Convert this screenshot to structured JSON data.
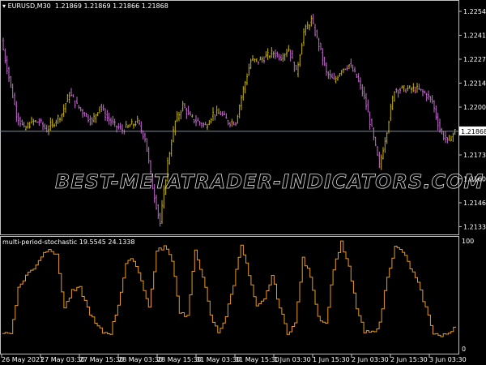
{
  "header": {
    "symbol": "EURUSD,M30",
    "ohlc": "1.21869 1.21869 1.21866 1.21868"
  },
  "indicator": {
    "name": "multi-period-stochastic",
    "values": "19.5545 24.1338"
  },
  "watermark": "BEST-METATRADER-INDICATORS.COM",
  "colors": {
    "background": "#000000",
    "up_bar": "#c8b400",
    "down_bar": "#c86ed2",
    "oscillator": "#e89a1c",
    "grid_axis": "#c0c0c0",
    "price_line": "#7a8ca0"
  },
  "chart_data": [
    {
      "type": "bar",
      "title": "EURUSD,M30",
      "ylim": [
        1.2126,
        1.2262
      ],
      "y_ticks": [
        "1.22545",
        "1.22410",
        "1.22275",
        "1.22140",
        "1.22005",
        "1.21735",
        "1.21600",
        "1.21465",
        "1.21330"
      ],
      "current_price": "1.21868",
      "x_ticks": [
        "26 May 2021",
        "27 May 03:30",
        "27 May 15:30",
        "28 May 03:30",
        "28 May 15:30",
        "31 May 03:30",
        "31 May 15:30",
        "1 Jun 03:30",
        "1 Jun 15:30",
        "2 Jun 03:30",
        "2 Jun 15:30",
        "3 Jun 03:30"
      ],
      "closes": [
        1.2238,
        1.22174,
        1.21968,
        1.21877,
        1.21922,
        1.21922,
        1.21877,
        1.21922,
        1.21968,
        1.22083,
        1.22014,
        1.21968,
        1.21922,
        1.22014,
        1.21945,
        1.21899,
        1.21877,
        1.21899,
        1.21922,
        1.21831,
        1.21556,
        1.2135,
        1.21694,
        1.21922,
        1.22014,
        1.21945,
        1.21922,
        1.21899,
        1.21968,
        1.21968,
        1.21922,
        1.21922,
        1.22106,
        1.22266,
        1.22266,
        1.22289,
        1.22312,
        1.22289,
        1.22334,
        1.22197,
        1.22426,
        1.22495,
        1.22357,
        1.22197,
        1.22151,
        1.2222,
        1.22243,
        1.22174,
        1.2206,
        1.21877,
        1.21671,
        1.21877,
        1.22106,
        1.22106,
        1.22106,
        1.22106,
        1.22083,
        1.22037,
        1.21877,
        1.21808,
        1.21868
      ]
    },
    {
      "type": "line",
      "title": "multi-period-stochastic",
      "ylim": [
        0,
        100
      ],
      "y_ticks": [
        "100",
        "0"
      ],
      "values": [
        15,
        14,
        56,
        68,
        75,
        86,
        94,
        86,
        38,
        53,
        56,
        38,
        23,
        15,
        15,
        41,
        79,
        83,
        64,
        38,
        90,
        95,
        83,
        34,
        30,
        90,
        68,
        30,
        15,
        30,
        60,
        98,
        68,
        38,
        45,
        68,
        38,
        15,
        23,
        83,
        68,
        30,
        23,
        75,
        98,
        75,
        38,
        15,
        15,
        23,
        68,
        94,
        90,
        75,
        60,
        38,
        15,
        11,
        15,
        23
      ]
    }
  ]
}
